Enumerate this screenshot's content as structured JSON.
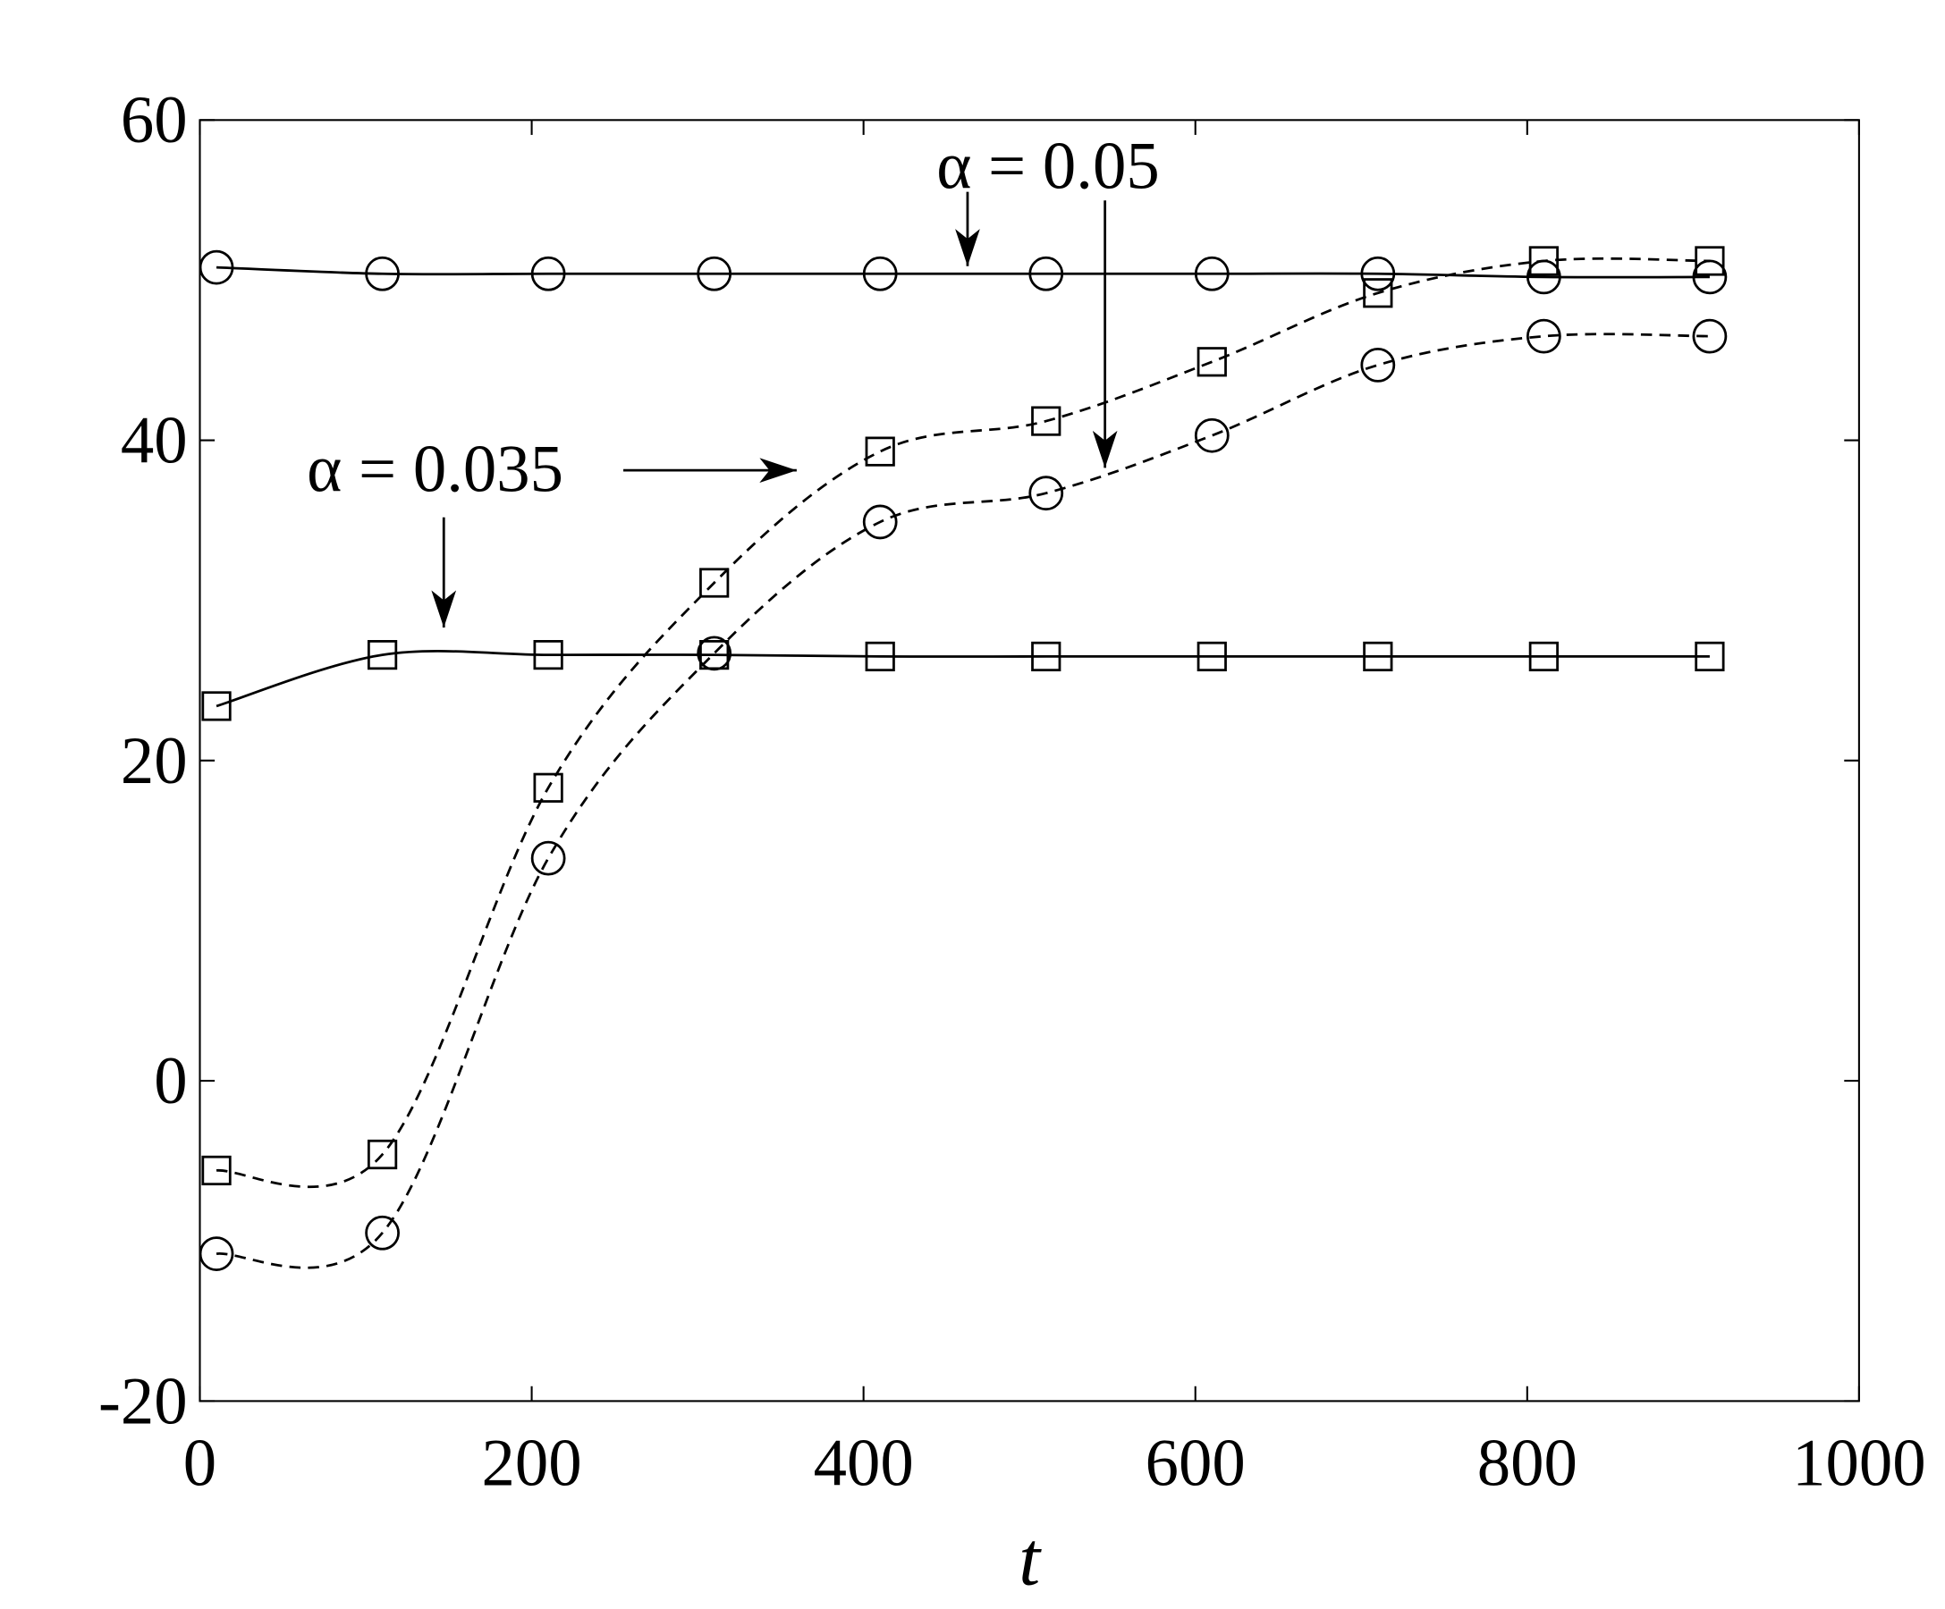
{
  "chart_data": {
    "type": "line",
    "x_label": "t",
    "xlim": [
      0,
      1000
    ],
    "xticks": [
      0,
      200,
      400,
      600,
      800,
      1000
    ],
    "ylim": [
      -20,
      60
    ],
    "yticks": [
      -20,
      0,
      20,
      40,
      60
    ],
    "grid": false,
    "annotations": [
      "α = 0.05",
      "α = 0.035"
    ],
    "series": [
      {
        "color": "#000000",
        "line_style": "solid",
        "marker": "circle",
        "x": [
          10,
          110,
          210,
          310,
          410,
          510,
          610,
          710,
          810,
          910
        ],
        "values": [
          50.8,
          50.4,
          50.4,
          50.4,
          50.4,
          50.4,
          50.4,
          50.4,
          50.2,
          50.2
        ]
      },
      {
        "color": "#000000",
        "line_style": "solid",
        "marker": "square",
        "x": [
          10,
          110,
          210,
          310,
          410,
          510,
          610,
          710,
          810,
          910
        ],
        "values": [
          23.4,
          26.6,
          26.6,
          26.6,
          26.5,
          26.5,
          26.5,
          26.5,
          26.5,
          26.5
        ]
      },
      {
        "color": "#000000",
        "line_style": "dashed",
        "marker": "square",
        "x": [
          10,
          110,
          210,
          310,
          410,
          510,
          610,
          710,
          810,
          910
        ],
        "values": [
          -5.6,
          -4.6,
          18.3,
          31.1,
          39.3,
          41.2,
          44.9,
          49.2,
          51.2,
          51.2
        ]
      },
      {
        "color": "#000000",
        "line_style": "dashed",
        "marker": "circle",
        "x": [
          10,
          110,
          210,
          310,
          410,
          510,
          610,
          710,
          810,
          910
        ],
        "values": [
          -10.8,
          -9.5,
          13.9,
          26.7,
          34.9,
          36.7,
          40.3,
          44.7,
          46.5,
          46.5
        ]
      }
    ]
  }
}
